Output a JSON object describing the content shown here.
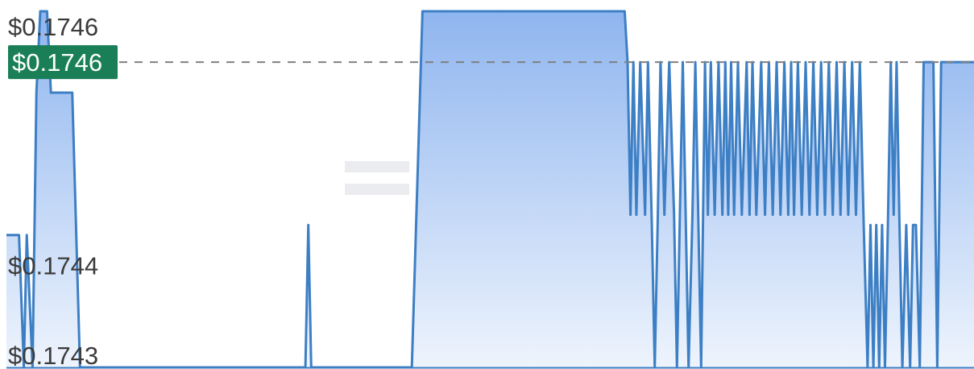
{
  "chart_data": {
    "type": "area",
    "y_unit_prefix": "$",
    "ylim": [
      0.1743,
      0.17465
    ],
    "xlim": [
      0,
      100
    ],
    "y_ticks": [
      {
        "value": 0.1746,
        "label": "$0.1746"
      },
      {
        "value": 0.1744,
        "label": "$0.1744"
      },
      {
        "value": 0.1743,
        "label": "$0.1743"
      }
    ],
    "current_price": {
      "value": 0.1746,
      "label": "$0.1746"
    },
    "grid": false,
    "legend": "none",
    "colors": {
      "line": "#3d7fc4",
      "fill_top": "#8fb5ef",
      "fill_bottom": "#eef4fd",
      "price_tag_bg": "#1a7f57",
      "price_line": "#808080"
    },
    "series": [
      {
        "x": [
          0,
          1.3,
          1.8,
          2.1,
          2.7,
          3.1,
          3.5,
          4.2,
          4.6,
          6.8,
          7.6,
          9.5,
          30.9,
          31.2,
          31.5,
          41.9,
          43.0,
          63.9,
          64.2,
          64.5,
          64.8,
          65.1,
          65.5,
          66.0,
          66.3,
          66.7,
          67.0,
          67.3,
          67.6,
          68.0,
          68.5,
          69.0,
          69.3,
          69.6,
          69.9,
          70.2,
          70.5,
          70.9,
          71.2,
          71.5,
          71.8,
          72.2,
          72.5,
          72.8,
          73.2,
          73.6,
          74.0,
          74.3,
          74.6,
          74.9,
          75.2,
          75.6,
          76.0,
          76.5,
          76.8,
          77.1,
          77.5,
          78.0,
          78.4,
          78.8,
          79.2,
          79.6,
          80.0,
          80.4,
          80.8,
          81.1,
          81.4,
          81.8,
          82.2,
          82.6,
          83.0,
          83.4,
          83.8,
          84.2,
          84.6,
          85.0,
          85.4,
          85.8,
          86.2,
          86.6,
          87.0,
          87.4,
          87.8,
          88.2,
          88.6,
          89.0,
          89.3,
          89.6,
          89.9,
          90.2,
          90.5,
          90.8,
          91.1,
          91.4,
          91.7,
          92.0,
          92.3,
          92.6,
          93.0,
          93.4,
          93.7,
          94.0,
          94.4,
          94.8,
          95.3,
          95.8,
          96.2,
          96.6,
          97.0,
          100
        ],
        "y": [
          0.17443,
          0.17443,
          0.1743,
          0.17443,
          0.1743,
          0.17457,
          0.17465,
          0.17465,
          0.17457,
          0.17457,
          0.1743,
          0.1743,
          0.1743,
          0.17444,
          0.1743,
          0.1743,
          0.17465,
          0.17465,
          0.1746,
          0.17445,
          0.1746,
          0.17445,
          0.1746,
          0.17445,
          0.1746,
          0.17444,
          0.1743,
          0.17444,
          0.1746,
          0.17445,
          0.1746,
          0.17445,
          0.1743,
          0.17445,
          0.1746,
          0.17445,
          0.1743,
          0.17445,
          0.1746,
          0.17445,
          0.1743,
          0.1746,
          0.17445,
          0.1746,
          0.17445,
          0.1746,
          0.17445,
          0.1746,
          0.17445,
          0.1746,
          0.17445,
          0.1746,
          0.17445,
          0.1746,
          0.17445,
          0.1746,
          0.17445,
          0.1746,
          0.17445,
          0.1746,
          0.17445,
          0.1746,
          0.17445,
          0.1746,
          0.17445,
          0.1746,
          0.17445,
          0.1746,
          0.17445,
          0.1746,
          0.17445,
          0.1746,
          0.17445,
          0.1746,
          0.17445,
          0.1746,
          0.17445,
          0.1746,
          0.17445,
          0.1746,
          0.17445,
          0.1746,
          0.17445,
          0.1746,
          0.17444,
          0.1743,
          0.17444,
          0.1743,
          0.17444,
          0.1743,
          0.17444,
          0.1743,
          0.17444,
          0.1746,
          0.17445,
          0.1746,
          0.17444,
          0.1743,
          0.17444,
          0.1743,
          0.17444,
          0.17444,
          0.1743,
          0.1746,
          0.1746,
          0.1746,
          0.1743,
          0.1746,
          0.1746,
          0.1746
        ]
      }
    ]
  }
}
